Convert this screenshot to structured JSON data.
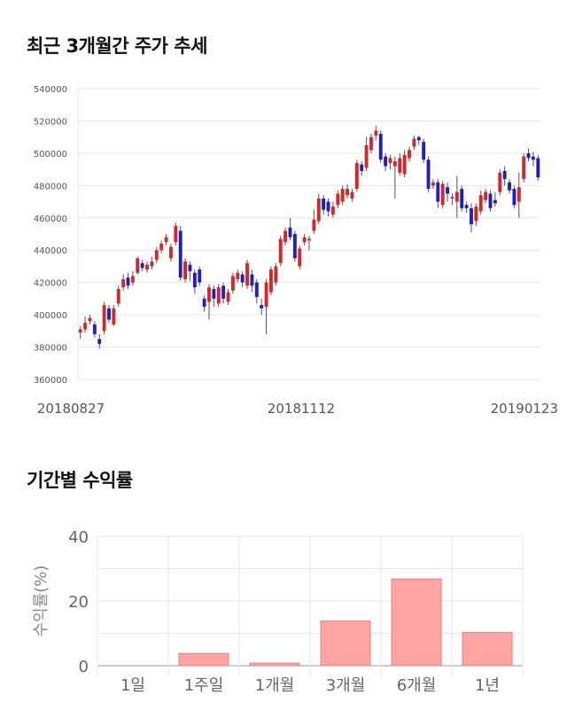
{
  "sections": {
    "price_title": "최근 3개월간 주가 추세",
    "returns_title": "기간별 수익률"
  },
  "chart_data": [
    {
      "type": "candlestick",
      "title": "최근 3개월간 주가 추세",
      "ylim": [
        360000,
        540000
      ],
      "yticks": [
        "540000",
        "520000",
        "500000",
        "480000",
        "460000",
        "440000",
        "420000",
        "400000",
        "380000",
        "360000"
      ],
      "xticks": [
        "20180827",
        "20181112",
        "20190123"
      ],
      "grid": true,
      "colors": {
        "up": "#d62728",
        "down": "#1f1fbf"
      },
      "candles": [
        [
          389000,
          391000,
          385000,
          393000
        ],
        [
          391000,
          395000,
          389000,
          399000
        ],
        [
          396000,
          398000,
          394000,
          400000
        ],
        [
          394000,
          388000,
          386000,
          396000
        ],
        [
          385000,
          382000,
          379000,
          388000
        ],
        [
          390000,
          406000,
          388000,
          408000
        ],
        [
          404000,
          397000,
          395000,
          406000
        ],
        [
          394000,
          404000,
          393000,
          406000
        ],
        [
          407000,
          416000,
          405000,
          418000
        ],
        [
          417000,
          422000,
          415000,
          425000
        ],
        [
          423000,
          418000,
          416000,
          426000
        ],
        [
          420000,
          424000,
          418000,
          427000
        ],
        [
          426000,
          435000,
          425000,
          436000
        ],
        [
          432000,
          429000,
          427000,
          434000
        ],
        [
          428000,
          431000,
          426000,
          433000
        ],
        [
          430000,
          433000,
          428000,
          436000
        ],
        [
          434000,
          440000,
          432000,
          442000
        ],
        [
          440000,
          444000,
          438000,
          446000
        ],
        [
          445000,
          448000,
          443000,
          450000
        ],
        [
          435000,
          442000,
          433000,
          444000
        ],
        [
          445000,
          455000,
          443000,
          457000
        ],
        [
          452000,
          423000,
          421000,
          455000
        ],
        [
          422000,
          433000,
          420000,
          435000
        ],
        [
          431000,
          427000,
          421000,
          433000
        ],
        [
          426000,
          417000,
          413000,
          428000
        ],
        [
          428000,
          420000,
          418000,
          430000
        ],
        [
          410000,
          405000,
          402000,
          412000
        ],
        [
          408000,
          417000,
          397000,
          419000
        ],
        [
          416000,
          410000,
          405000,
          418000
        ],
        [
          407000,
          417000,
          405000,
          419000
        ],
        [
          418000,
          410000,
          407000,
          420000
        ],
        [
          408000,
          414000,
          406000,
          416000
        ],
        [
          415000,
          424000,
          413000,
          426000
        ],
        [
          422000,
          426000,
          420000,
          428000
        ],
        [
          425000,
          420000,
          417000,
          427000
        ],
        [
          418000,
          432000,
          416000,
          434000
        ],
        [
          425000,
          418000,
          414000,
          428000
        ],
        [
          420000,
          411000,
          407000,
          422000
        ],
        [
          406000,
          404000,
          400000,
          410000
        ],
        [
          405000,
          420000,
          388000,
          422000
        ],
        [
          414000,
          428000,
          412000,
          430000
        ],
        [
          420000,
          430000,
          418000,
          432000
        ],
        [
          432000,
          447000,
          430000,
          449000
        ],
        [
          445000,
          452000,
          443000,
          454000
        ],
        [
          454000,
          448000,
          446000,
          460000
        ],
        [
          450000,
          435000,
          433000,
          452000
        ],
        [
          430000,
          441000,
          428000,
          443000
        ],
        [
          445000,
          448000,
          443000,
          450000
        ],
        [
          446000,
          447000,
          440000,
          449000
        ],
        [
          452000,
          459000,
          450000,
          465000
        ],
        [
          458000,
          472000,
          456000,
          475000
        ],
        [
          472000,
          465000,
          462000,
          474000
        ],
        [
          470000,
          464000,
          461000,
          472000
        ],
        [
          462000,
          467000,
          460000,
          470000
        ],
        [
          468000,
          475000,
          466000,
          477000
        ],
        [
          470000,
          478000,
          468000,
          480000
        ],
        [
          474000,
          478000,
          472000,
          481000
        ],
        [
          472000,
          476000,
          470000,
          478000
        ],
        [
          478000,
          494000,
          476000,
          496000
        ],
        [
          493000,
          489000,
          486000,
          495000
        ],
        [
          491000,
          505000,
          489000,
          510000
        ],
        [
          502000,
          510000,
          500000,
          512000
        ],
        [
          511000,
          514000,
          508000,
          517000
        ],
        [
          512000,
          496000,
          494000,
          514000
        ],
        [
          498000,
          492000,
          489000,
          500000
        ],
        [
          494000,
          497000,
          490000,
          499000
        ],
        [
          492000,
          495000,
          472000,
          498000
        ],
        [
          488000,
          497000,
          486000,
          500000
        ],
        [
          487000,
          499000,
          485000,
          502000
        ],
        [
          497000,
          502000,
          495000,
          504000
        ],
        [
          504000,
          509000,
          502000,
          511000
        ],
        [
          510000,
          508000,
          505000,
          511000
        ],
        [
          507000,
          496000,
          494000,
          509000
        ],
        [
          496000,
          478000,
          476000,
          498000
        ],
        [
          480000,
          482000,
          478000,
          484000
        ],
        [
          482000,
          470000,
          466000,
          484000
        ],
        [
          468000,
          481000,
          466000,
          483000
        ],
        [
          479000,
          475000,
          470000,
          482000
        ],
        [
          472000,
          473000,
          468000,
          475000
        ],
        [
          470000,
          476000,
          460000,
          486000
        ],
        [
          478000,
          466000,
          464000,
          480000
        ],
        [
          468000,
          466000,
          463000,
          470000
        ],
        [
          466000,
          456000,
          451000,
          469000
        ],
        [
          458000,
          467000,
          455000,
          469000
        ],
        [
          464000,
          474000,
          462000,
          477000
        ],
        [
          471000,
          476000,
          469000,
          478000
        ],
        [
          475000,
          466000,
          464000,
          477000
        ],
        [
          471000,
          469000,
          467000,
          476000
        ],
        [
          476000,
          488000,
          474000,
          490000
        ],
        [
          489000,
          484000,
          480000,
          492000
        ],
        [
          482000,
          477000,
          475000,
          484000
        ],
        [
          478000,
          468000,
          466000,
          480000
        ],
        [
          470000,
          479000,
          460000,
          488000
        ],
        [
          484000,
          498000,
          482000,
          500000
        ],
        [
          500000,
          497000,
          495000,
          503000
        ],
        [
          498000,
          496000,
          492000,
          501000
        ],
        [
          497000,
          485000,
          483000,
          499000
        ]
      ]
    },
    {
      "type": "bar",
      "title": "기간별 수익률",
      "categories": [
        "1일",
        "1주일",
        "1개월",
        "3개월",
        "6개월",
        "1년"
      ],
      "values": [
        0.0,
        3.8,
        0.8,
        13.8,
        26.8,
        10.3
      ],
      "ylabel": "수익률(%)",
      "ylim": [
        0,
        40
      ],
      "yticks": [
        "40",
        "20",
        "0"
      ],
      "grid": true,
      "colors": {
        "bar": "#ffa3a3",
        "bar_edge": "#e88080"
      }
    }
  ]
}
